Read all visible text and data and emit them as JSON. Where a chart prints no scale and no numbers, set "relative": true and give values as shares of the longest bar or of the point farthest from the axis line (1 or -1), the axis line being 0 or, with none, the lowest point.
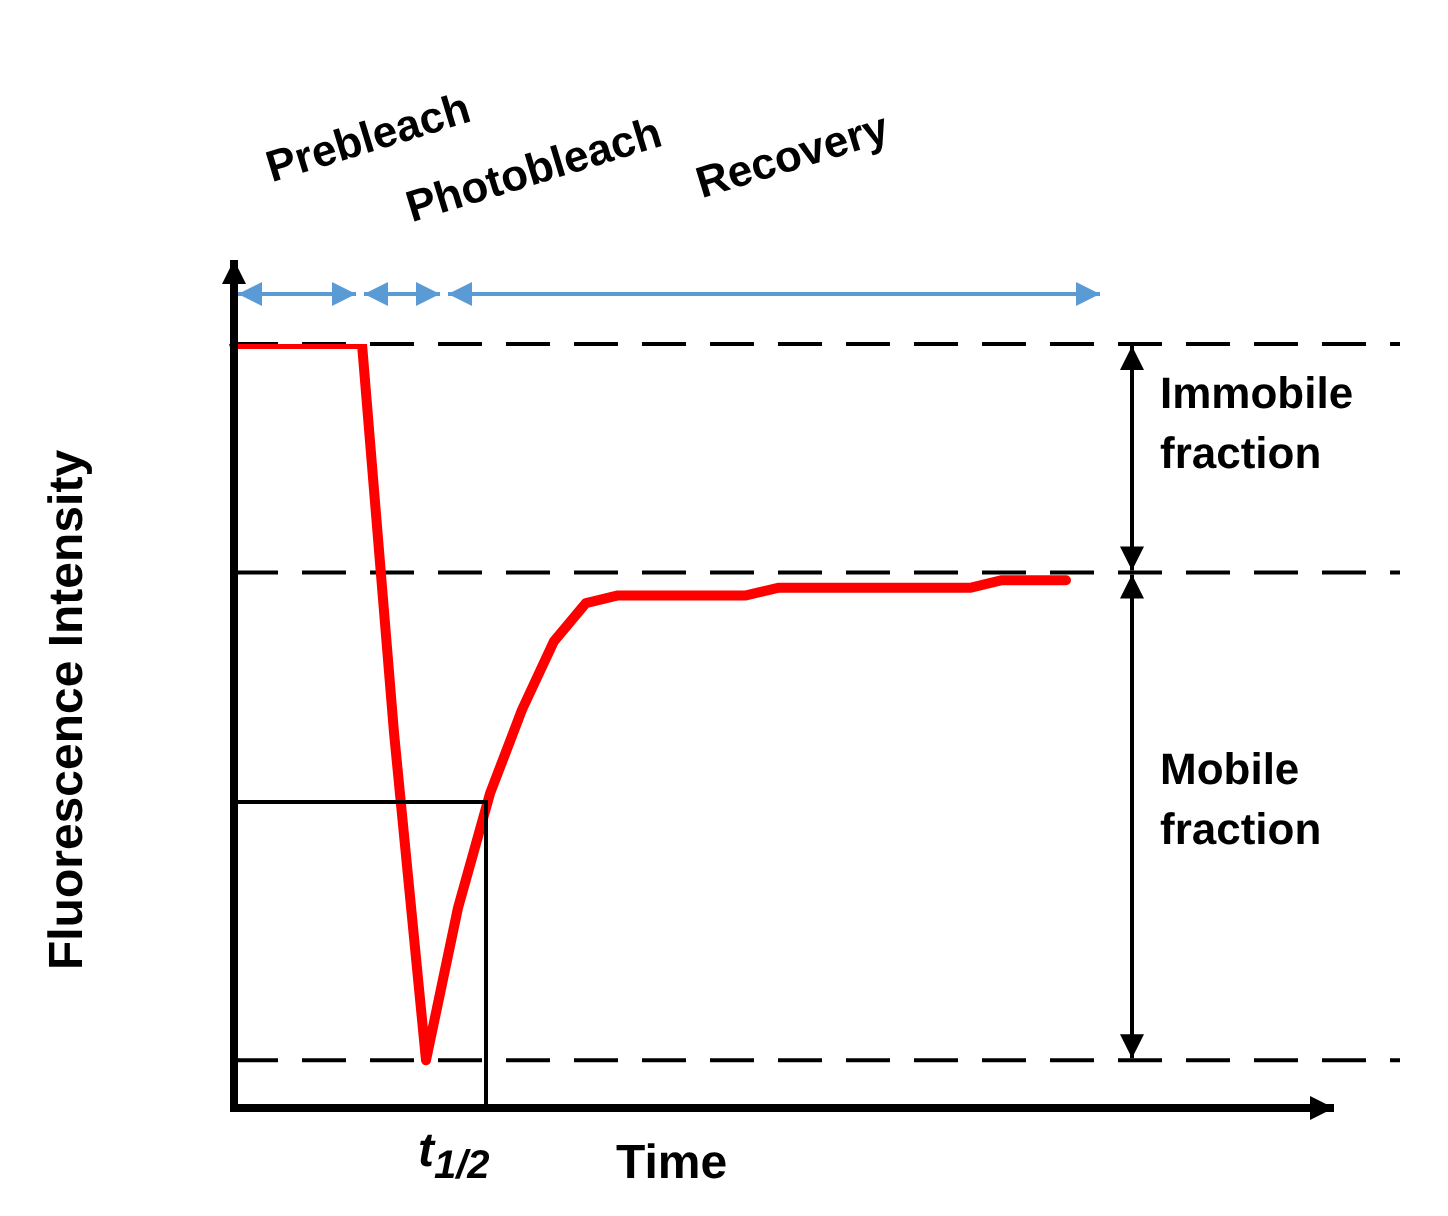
{
  "chart_data": {
    "type": "line",
    "relative": true,
    "xlabel": "Time",
    "ylabel": "Fluorescence Intensity",
    "categories": [
      null,
      null,
      null,
      null,
      null,
      null,
      null,
      null,
      null,
      null,
      null,
      null,
      null,
      null,
      null,
      null,
      null,
      null,
      null,
      null,
      null,
      null,
      null,
      null,
      null,
      null,
      null
    ],
    "series": [
      {
        "color": "#ff0000",
        "values": [
          1,
          1,
          1,
          1,
          1,
          0.49,
          0.06,
          0.26,
          0.41,
          0.52,
          0.61,
          0.66,
          0.67,
          0.67,
          0.67,
          0.67,
          0.67,
          0.68,
          0.68,
          0.68,
          0.68,
          0.68,
          0.68,
          0.68,
          0.69,
          0.69,
          0.69
        ]
      }
    ],
    "ref_lines": [
      {
        "axis": "y",
        "value": 1,
        "color": "#000000",
        "line_style": "dashed"
      },
      {
        "axis": "y",
        "value": 0.7,
        "color": "#000000",
        "line_style": "dashed"
      },
      {
        "axis": "y",
        "value": 0.06,
        "color": "#000000",
        "line_style": "dashed"
      }
    ],
    "annotations": [
      "Prebleach",
      "Photobleach",
      "Recovery",
      "Immobile fraction",
      "Mobile fraction",
      "t$_{1/2}$"
    ]
  }
}
